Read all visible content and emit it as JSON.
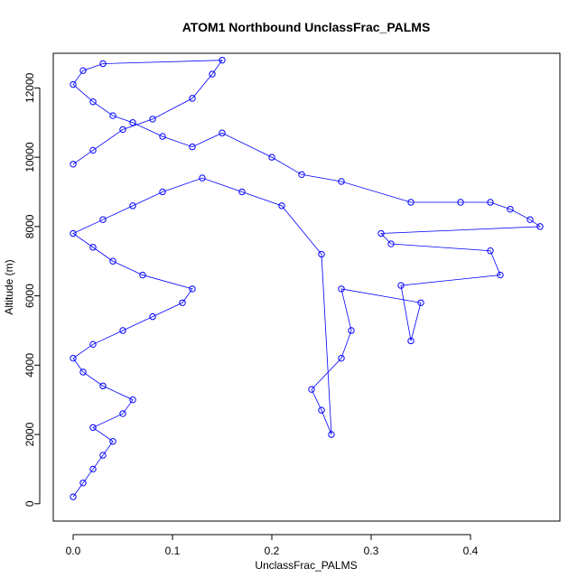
{
  "chart_data": {
    "type": "scatter",
    "title": "ATOM1 Northbound UnclassFrac_PALMS",
    "xlabel": "UnclassFrac_PALMS",
    "ylabel": "Altitude (m)",
    "xlim": [
      -0.02,
      0.49
    ],
    "ylim": [
      -500,
      13000
    ],
    "xticks": [
      0.0,
      0.1,
      0.2,
      0.3,
      0.4
    ],
    "xtick_labels": [
      "0.0",
      "0.1",
      "0.2",
      "0.3",
      "0.4"
    ],
    "yticks": [
      0,
      2000,
      4000,
      6000,
      8000,
      10000,
      12000
    ],
    "ytick_labels": [
      "0",
      "2000",
      "4000",
      "6000",
      "8000",
      "10000",
      "12000"
    ],
    "grid": false,
    "marker": "open-circle",
    "connected": true,
    "series": [
      {
        "color": "#0000ff",
        "x": [
          0.0,
          0.01,
          0.02,
          0.03,
          0.04,
          0.02,
          0.05,
          0.06,
          0.03,
          0.01,
          0.0,
          0.02,
          0.05,
          0.08,
          0.11,
          0.12,
          0.07,
          0.04,
          0.02,
          0.0,
          0.03,
          0.06,
          0.09,
          0.13,
          0.17,
          0.21,
          0.25,
          0.26,
          0.25,
          0.24,
          0.27,
          0.28,
          0.27,
          0.35,
          0.34,
          0.33,
          0.43,
          0.42,
          0.32,
          0.31,
          0.47,
          0.46,
          0.44,
          0.42,
          0.39,
          0.34,
          0.27,
          0.23,
          0.2,
          0.15,
          0.12,
          0.09,
          0.06,
          0.04,
          0.02,
          0.0,
          0.01,
          0.03,
          0.15,
          0.14,
          0.12,
          0.08,
          0.05,
          0.02,
          0.0
        ],
        "y": [
          200,
          600,
          1000,
          1400,
          1800,
          2200,
          2600,
          3000,
          3400,
          3800,
          4200,
          4600,
          5000,
          5400,
          5800,
          6200,
          6600,
          7000,
          7400,
          7800,
          8200,
          8600,
          9000,
          9400,
          9000,
          8600,
          7200,
          2000,
          2700,
          3300,
          4200,
          5000,
          6200,
          5800,
          4700,
          6300,
          6600,
          7300,
          7500,
          7800,
          8000,
          8200,
          8500,
          8700,
          8700,
          8700,
          9300,
          9500,
          10000,
          10700,
          10300,
          10600,
          11000,
          11200,
          11600,
          12100,
          12500,
          12700,
          12800,
          12400,
          11700,
          11100,
          10800,
          10200,
          9800
        ]
      }
    ]
  }
}
